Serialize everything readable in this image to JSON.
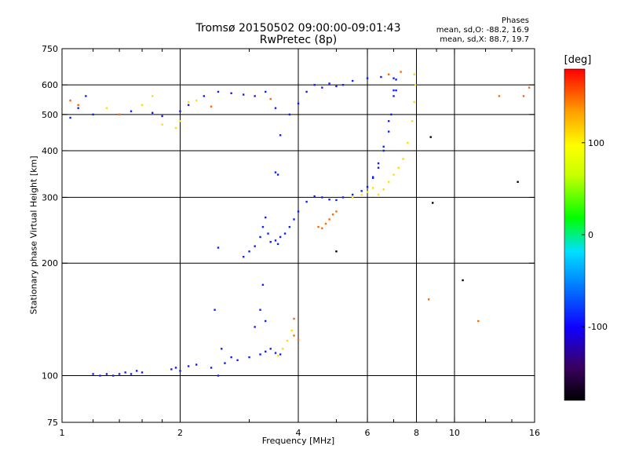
{
  "chart_data": {
    "type": "scatter",
    "title": "Tromsø 20150502 09:00:00-09:01:43",
    "subtitle": "RwPretec (8p)",
    "xlabel": "Frequency [MHz]",
    "ylabel": "Stationary phase Virtual Height [km]",
    "x_scale": "log",
    "y_scale": "log",
    "xlim": [
      1,
      16
    ],
    "ylim": [
      75,
      750
    ],
    "x_ticks": [
      1,
      2,
      4,
      6,
      8,
      10,
      16
    ],
    "x_tick_labels": [
      "1",
      "2",
      "4",
      "6",
      "8",
      "10",
      "16"
    ],
    "x_minor_ticks": [
      1.2,
      1.4,
      1.6,
      1.8,
      3,
      5,
      7,
      9,
      12,
      14
    ],
    "y_ticks": [
      75,
      100,
      200,
      300,
      400,
      500,
      600,
      750
    ],
    "y_tick_labels": [
      "75",
      "100",
      "200",
      "300",
      "400",
      "500",
      "600",
      "750"
    ],
    "grid": true,
    "stats": {
      "heading": "Phases",
      "o_line": "mean, sd,O: -88.2, 16.9",
      "x_line": "mean, sd,X:  88.7, 19.7"
    },
    "colorbar": {
      "label": "[deg]",
      "range": [
        -180,
        180
      ],
      "ticks": [
        100,
        0,
        -100
      ],
      "tick_labels": [
        "100",
        "0",
        "-100"
      ]
    },
    "series": [
      {
        "color_phase": -90,
        "points": [
          [
            1.2,
            101
          ],
          [
            1.25,
            100
          ],
          [
            1.3,
            101
          ],
          [
            1.35,
            100
          ],
          [
            1.4,
            101
          ],
          [
            1.45,
            102
          ],
          [
            1.5,
            101
          ],
          [
            1.55,
            103
          ],
          [
            1.6,
            102
          ],
          [
            1.9,
            104
          ],
          [
            1.95,
            105
          ],
          [
            2.0,
            103
          ],
          [
            2.1,
            106
          ],
          [
            2.2,
            107
          ],
          [
            2.4,
            105
          ],
          [
            2.5,
            100
          ],
          [
            2.6,
            108
          ],
          [
            2.8,
            110
          ],
          [
            3.0,
            112
          ],
          [
            3.2,
            114
          ],
          [
            3.3,
            116
          ],
          [
            2.45,
            150
          ],
          [
            2.55,
            118
          ],
          [
            2.7,
            112
          ],
          [
            3.1,
            135
          ],
          [
            3.2,
            150
          ],
          [
            3.25,
            175
          ],
          [
            3.3,
            140
          ],
          [
            3.4,
            118
          ],
          [
            3.5,
            115
          ],
          [
            3.6,
            114
          ],
          [
            2.5,
            220
          ],
          [
            2.9,
            208
          ],
          [
            3.0,
            215
          ],
          [
            3.1,
            222
          ],
          [
            3.2,
            235
          ],
          [
            3.25,
            250
          ],
          [
            3.3,
            265
          ],
          [
            3.35,
            240
          ],
          [
            3.4,
            228
          ],
          [
            3.5,
            230
          ],
          [
            3.55,
            225
          ],
          [
            3.6,
            235
          ],
          [
            3.7,
            240
          ],
          [
            3.8,
            250
          ],
          [
            3.9,
            262
          ],
          [
            4.0,
            275
          ],
          [
            4.2,
            292
          ],
          [
            4.4,
            302
          ],
          [
            4.6,
            300
          ],
          [
            4.8,
            296
          ],
          [
            5.0,
            295
          ],
          [
            5.2,
            300
          ],
          [
            5.5,
            305
          ],
          [
            5.8,
            312
          ],
          [
            6.0,
            320
          ],
          [
            6.2,
            340
          ],
          [
            6.4,
            370
          ],
          [
            6.6,
            410
          ],
          [
            6.8,
            480
          ],
          [
            7.0,
            580
          ],
          [
            7.1,
            620
          ],
          [
            3.5,
            350
          ],
          [
            3.55,
            345
          ],
          [
            3.6,
            440
          ],
          [
            3.8,
            500
          ],
          [
            4.0,
            535
          ],
          [
            4.2,
            575
          ],
          [
            4.4,
            600
          ],
          [
            4.6,
            590
          ],
          [
            4.8,
            605
          ],
          [
            5.0,
            595
          ],
          [
            5.2,
            600
          ],
          [
            5.5,
            615
          ],
          [
            6.0,
            625
          ],
          [
            6.5,
            630
          ],
          [
            7.0,
            625
          ],
          [
            7.1,
            580
          ],
          [
            7.0,
            560
          ],
          [
            6.9,
            500
          ],
          [
            6.8,
            450
          ],
          [
            6.6,
            400
          ],
          [
            6.4,
            360
          ],
          [
            6.2,
            338
          ],
          [
            1.05,
            490
          ],
          [
            1.1,
            520
          ],
          [
            1.15,
            560
          ],
          [
            1.2,
            500
          ],
          [
            1.5,
            510
          ],
          [
            1.7,
            505
          ],
          [
            1.8,
            495
          ],
          [
            2.0,
            510
          ],
          [
            2.1,
            530
          ],
          [
            2.3,
            560
          ],
          [
            2.5,
            575
          ],
          [
            2.7,
            570
          ],
          [
            2.9,
            565
          ],
          [
            3.1,
            560
          ],
          [
            3.3,
            575
          ],
          [
            3.5,
            520
          ]
        ]
      },
      {
        "color_phase": 110,
        "points": [
          [
            6.4,
            305
          ],
          [
            6.6,
            315
          ],
          [
            6.8,
            330
          ],
          [
            7.0,
            345
          ],
          [
            7.2,
            360
          ],
          [
            7.4,
            380
          ],
          [
            7.6,
            420
          ],
          [
            7.8,
            480
          ],
          [
            7.9,
            540
          ],
          [
            7.95,
            600
          ],
          [
            7.9,
            640
          ],
          [
            5.5,
            300
          ],
          [
            5.8,
            305
          ],
          [
            6.0,
            310
          ],
          [
            6.2,
            318
          ],
          [
            3.55,
            113
          ],
          [
            3.65,
            118
          ],
          [
            3.75,
            124
          ],
          [
            3.85,
            132
          ],
          [
            1.3,
            520
          ],
          [
            1.6,
            530
          ],
          [
            1.8,
            470
          ],
          [
            2.0,
            480
          ],
          [
            2.2,
            545
          ],
          [
            1.7,
            560
          ],
          [
            2.1,
            540
          ],
          [
            1.95,
            460
          ]
        ]
      },
      {
        "color_phase": 150,
        "points": [
          [
            4.5,
            250
          ],
          [
            4.6,
            248
          ],
          [
            4.7,
            255
          ],
          [
            4.8,
            262
          ],
          [
            4.9,
            270
          ],
          [
            5.0,
            275
          ],
          [
            3.9,
            128
          ],
          [
            4.0,
            125
          ],
          [
            3.9,
            142
          ],
          [
            1.05,
            545
          ],
          [
            1.1,
            530
          ],
          [
            1.4,
            500
          ],
          [
            2.4,
            525
          ],
          [
            3.4,
            550
          ],
          [
            6.8,
            640
          ],
          [
            7.3,
            650
          ],
          [
            8.6,
            160
          ],
          [
            11.5,
            140
          ],
          [
            13.0,
            560
          ],
          [
            15.0,
            560
          ],
          [
            15.5,
            590
          ]
        ]
      },
      {
        "color_phase": -180,
        "points": [
          [
            5.0,
            215
          ],
          [
            8.7,
            435
          ],
          [
            10.5,
            180
          ],
          [
            14.5,
            330
          ],
          [
            8.8,
            290
          ]
        ]
      }
    ]
  }
}
